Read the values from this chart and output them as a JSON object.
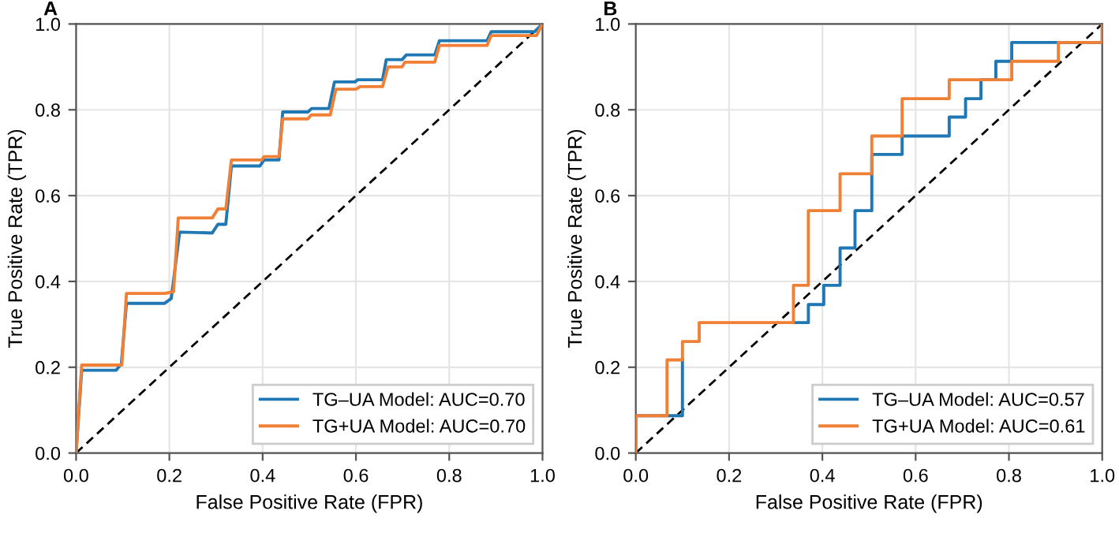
{
  "chart_data": [
    {
      "type": "line",
      "title": "A",
      "xlabel": "False Positive Rate (FPR)",
      "ylabel": "True Positive Rate (TPR)",
      "xlim": [
        0,
        1
      ],
      "ylim": [
        0,
        1
      ],
      "xticks": [
        {
          "value": 0,
          "label": "0.0"
        },
        {
          "value": 0.2,
          "label": "0.2"
        },
        {
          "value": 0.4,
          "label": "0.4"
        },
        {
          "value": 0.6,
          "label": "0.6"
        },
        {
          "value": 0.8,
          "label": "0.8"
        },
        {
          "value": 1,
          "label": "1.0"
        }
      ],
      "yticks": [
        {
          "value": 0,
          "label": "0.0"
        },
        {
          "value": 0.2,
          "label": "0.2"
        },
        {
          "value": 0.4,
          "label": "0.4"
        },
        {
          "value": 0.6,
          "label": "0.6"
        },
        {
          "value": 0.8,
          "label": "0.8"
        },
        {
          "value": 1,
          "label": "1.0"
        }
      ],
      "grid": true,
      "legend": "bottom right",
      "series": [
        {
          "name": "TG–UA Model: AUC=0.70",
          "color": "#1f77b4",
          "x": [
            0,
            0.012,
            0.086,
            0.097,
            0.108,
            0.19,
            0.204,
            0.222,
            0.292,
            0.304,
            0.321,
            0.333,
            0.394,
            0.403,
            0.435,
            0.443,
            0.497,
            0.505,
            0.542,
            0.554,
            0.598,
            0.604,
            0.657,
            0.665,
            0.699,
            0.708,
            0.769,
            0.779,
            0.881,
            0.89,
            0.983,
            1
          ],
          "values": [
            0,
            0.193,
            0.193,
            0.208,
            0.349,
            0.349,
            0.36,
            0.515,
            0.513,
            0.533,
            0.533,
            0.669,
            0.669,
            0.683,
            0.683,
            0.795,
            0.795,
            0.803,
            0.803,
            0.865,
            0.865,
            0.87,
            0.87,
            0.917,
            0.917,
            0.928,
            0.928,
            0.961,
            0.961,
            0.982,
            0.982,
            1
          ]
        },
        {
          "name": "TG+UA Model: AUC=0.70",
          "color": "#f08035",
          "x": [
            0,
            0.012,
            0.098,
            0.108,
            0.19,
            0.209,
            0.219,
            0.292,
            0.304,
            0.321,
            0.333,
            0.398,
            0.403,
            0.435,
            0.443,
            0.497,
            0.504,
            0.545,
            0.557,
            0.6,
            0.609,
            0.657,
            0.669,
            0.699,
            0.705,
            0.769,
            0.779,
            0.881,
            0.89,
            0.987,
            1
          ],
          "values": [
            0,
            0.205,
            0.205,
            0.372,
            0.372,
            0.376,
            0.548,
            0.548,
            0.569,
            0.569,
            0.683,
            0.683,
            0.691,
            0.691,
            0.779,
            0.779,
            0.788,
            0.788,
            0.848,
            0.848,
            0.854,
            0.854,
            0.9,
            0.9,
            0.911,
            0.911,
            0.95,
            0.95,
            0.973,
            0.973,
            1
          ]
        },
        {
          "color": "#000000",
          "line_style": "dashed",
          "x": [
            0,
            1
          ],
          "values": [
            0,
            1
          ]
        }
      ]
    },
    {
      "type": "line",
      "title": "B",
      "xlabel": "False Positive Rate (FPR)",
      "ylabel": "True Positive Rate (TPR)",
      "xlim": [
        0,
        1
      ],
      "ylim": [
        0,
        1
      ],
      "xticks": [
        {
          "value": 0,
          "label": "0.0"
        },
        {
          "value": 0.2,
          "label": "0.2"
        },
        {
          "value": 0.4,
          "label": "0.4"
        },
        {
          "value": 0.6,
          "label": "0.6"
        },
        {
          "value": 0.8,
          "label": "0.8"
        },
        {
          "value": 1,
          "label": "1.0"
        }
      ],
      "yticks": [
        {
          "value": 0,
          "label": "0.0"
        },
        {
          "value": 0.2,
          "label": "0.2"
        },
        {
          "value": 0.4,
          "label": "0.4"
        },
        {
          "value": 0.6,
          "label": "0.6"
        },
        {
          "value": 0.8,
          "label": "0.8"
        },
        {
          "value": 1,
          "label": "1.0"
        }
      ],
      "grid": true,
      "legend": "bottom right",
      "series": [
        {
          "name": "TG–UA Model: AUC=0.57",
          "color": "#1f77b4",
          "x": [
            0,
            0,
            0.1,
            0.1,
            null,
            0.338,
            0.37,
            0.37,
            0.403,
            0.403,
            0.438,
            0.438,
            0.47,
            0.47,
            0.506,
            0.506,
            0.571,
            0.571,
            0.672,
            0.672,
            0.707,
            0.707,
            0.74,
            0.74,
            0.772,
            0.772,
            0.806,
            0.806,
            1,
            1
          ],
          "values": [
            0,
            0.087,
            0.087,
            0.217,
            null,
            0.304,
            0.304,
            0.346,
            0.346,
            0.391,
            0.391,
            0.478,
            0.478,
            0.565,
            0.565,
            0.696,
            0.696,
            0.739,
            0.739,
            0.783,
            0.783,
            0.826,
            0.826,
            0.87,
            0.87,
            0.913,
            0.913,
            0.957,
            0.957,
            1
          ]
        },
        {
          "name": "TG+UA Model: AUC=0.61",
          "color": "#f08035",
          "x": [
            0,
            0,
            0.067,
            0.067,
            0.1,
            0.1,
            0.136,
            0.136,
            0.338,
            0.338,
            0.37,
            0.37,
            0.438,
            0.438,
            0.506,
            0.506,
            0.571,
            0.571,
            0.672,
            0.672,
            0.806,
            0.806,
            0.906,
            0.906,
            1,
            1
          ],
          "values": [
            0,
            0.087,
            0.087,
            0.217,
            0.217,
            0.26,
            0.26,
            0.304,
            0.304,
            0.391,
            0.391,
            0.565,
            0.565,
            0.651,
            0.651,
            0.739,
            0.739,
            0.826,
            0.826,
            0.87,
            0.87,
            0.913,
            0.913,
            0.957,
            0.957,
            1
          ]
        },
        {
          "color": "#000000",
          "line_style": "dashed",
          "x": [
            0,
            1
          ],
          "values": [
            0,
            1
          ]
        }
      ]
    }
  ]
}
